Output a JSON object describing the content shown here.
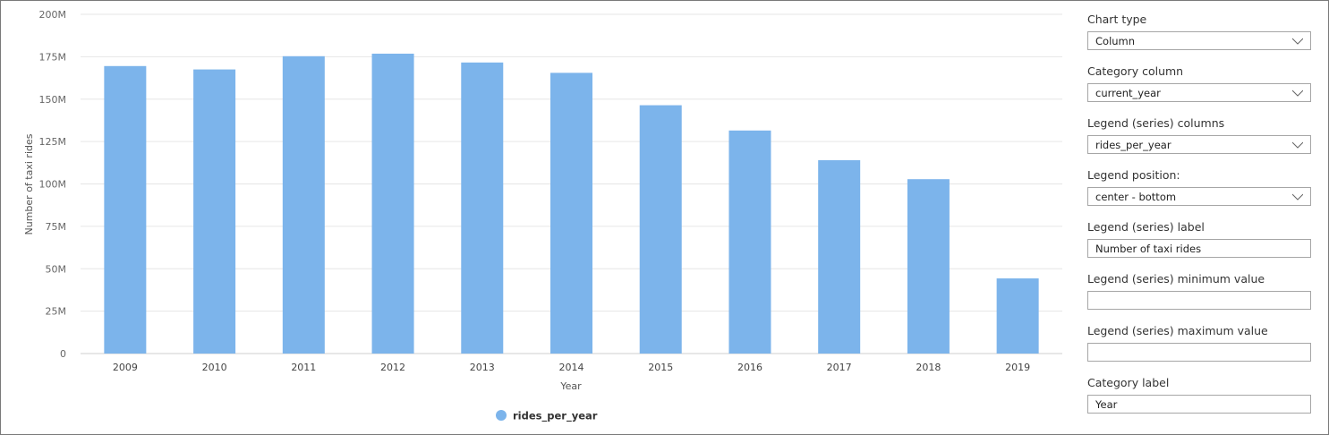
{
  "chart_data": {
    "type": "bar",
    "categories": [
      "2009",
      "2010",
      "2011",
      "2012",
      "2013",
      "2014",
      "2015",
      "2016",
      "2017",
      "2018",
      "2019"
    ],
    "series": [
      {
        "name": "rides_per_year",
        "values": [
          169.5,
          167.5,
          175.3,
          176.8,
          171.6,
          165.5,
          146.4,
          131.5,
          114,
          102.8,
          44.3
        ],
        "color": "#7cb4eb"
      }
    ],
    "value_unit": "millions",
    "xlabel": "Year",
    "ylabel": "Number of taxi rides",
    "ylim": [
      0,
      200
    ],
    "yticks": [
      "0",
      "25M",
      "50M",
      "75M",
      "100M",
      "125M",
      "150M",
      "175M",
      "200M"
    ],
    "grid": true,
    "legend_position": "bottom"
  },
  "settings": {
    "chart_type": {
      "label": "Chart type",
      "value": "Column"
    },
    "category_column": {
      "label": "Category column",
      "value": "current_year"
    },
    "legend_columns": {
      "label": "Legend (series) columns",
      "value": "rides_per_year"
    },
    "legend_position": {
      "label": "Legend position:",
      "value": "center - bottom"
    },
    "legend_label": {
      "label": "Legend (series) label",
      "value": "Number of taxi rides"
    },
    "legend_min": {
      "label": "Legend (series) minimum value",
      "value": ""
    },
    "legend_max": {
      "label": "Legend (series) maximum value",
      "value": ""
    },
    "category_label": {
      "label": "Category label",
      "value": "Year"
    }
  }
}
